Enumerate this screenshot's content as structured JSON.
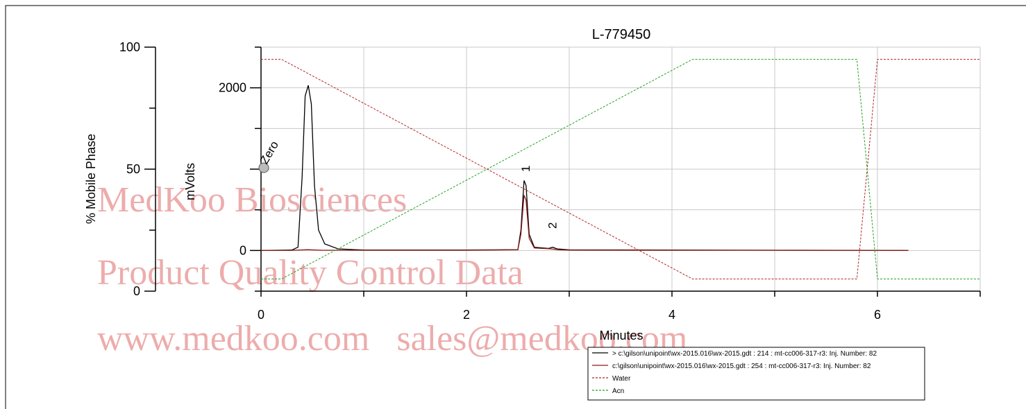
{
  "watermark": {
    "line1": "MedKoo Biosciences",
    "line2": "Product Quality Control Data",
    "line3": "www.medkoo.com   sales@medkoo.com"
  },
  "chart_data": {
    "type": "line",
    "title": "L-779450",
    "xlabel": "Minutes",
    "ylabel_left": "% Mobile Phase",
    "ylabel_right": "mVolts",
    "xlim": [
      0,
      7
    ],
    "ylim_phase": [
      0,
      100
    ],
    "ylim_mv": [
      -500,
      2500
    ],
    "x_ticks": [
      "0",
      "2",
      "4",
      "6"
    ],
    "phase_ticks": [
      "0",
      "50",
      "100"
    ],
    "mv_ticks": [
      "0",
      "2000"
    ],
    "grid": true,
    "legend_position": "bottom-right",
    "peak_labels": [
      {
        "label": "1",
        "x": 2.56
      },
      {
        "label": "2",
        "x": 2.82
      }
    ],
    "marker_label": "Zero",
    "series": [
      {
        "name": "> c:\\gilson\\unipoint\\wx-2015.016\\wx-2015.gdt : 214 : mt-cc006-317-r3: Inj. Number: 82",
        "color": "#000000",
        "style": "solid",
        "axis": "mv",
        "points": [
          [
            0,
            0
          ],
          [
            0.3,
            5
          ],
          [
            0.36,
            40
          ],
          [
            0.4,
            900
          ],
          [
            0.43,
            1900
          ],
          [
            0.46,
            2030
          ],
          [
            0.49,
            1800
          ],
          [
            0.52,
            800
          ],
          [
            0.56,
            250
          ],
          [
            0.62,
            80
          ],
          [
            0.75,
            20
          ],
          [
            1.0,
            5
          ],
          [
            2.0,
            5
          ],
          [
            2.5,
            10
          ],
          [
            2.53,
            250
          ],
          [
            2.56,
            860
          ],
          [
            2.58,
            800
          ],
          [
            2.61,
            200
          ],
          [
            2.66,
            40
          ],
          [
            2.8,
            25
          ],
          [
            2.84,
            40
          ],
          [
            2.88,
            20
          ],
          [
            3.0,
            8
          ],
          [
            4.0,
            6
          ],
          [
            5.0,
            3
          ],
          [
            6.0,
            2
          ],
          [
            6.3,
            0
          ]
        ]
      },
      {
        "name": "c:\\gilson\\unipoint\\wx-2015.016\\wx-2015.gdt : 254 : mt-cc006-317-r3: Inj. Number: 82",
        "color": "#8b1a1a",
        "style": "solid",
        "axis": "mv",
        "points": [
          [
            0,
            0
          ],
          [
            0.3,
            2
          ],
          [
            0.45,
            10
          ],
          [
            0.6,
            3
          ],
          [
            2.0,
            3
          ],
          [
            2.5,
            8
          ],
          [
            2.53,
            200
          ],
          [
            2.56,
            680
          ],
          [
            2.58,
            620
          ],
          [
            2.61,
            150
          ],
          [
            2.66,
            30
          ],
          [
            2.82,
            20
          ],
          [
            2.9,
            8
          ],
          [
            3.0,
            4
          ],
          [
            5.0,
            3
          ],
          [
            6.3,
            0
          ]
        ]
      },
      {
        "name": "Water",
        "color": "#b22222",
        "style": "dashed",
        "axis": "phase",
        "points": [
          [
            0,
            95
          ],
          [
            0.2,
            95
          ],
          [
            4.2,
            5
          ],
          [
            5.8,
            5
          ],
          [
            6.0,
            95
          ],
          [
            7.0,
            95
          ]
        ]
      },
      {
        "name": "Acn",
        "color": "#22a022",
        "style": "dashed",
        "axis": "phase",
        "points": [
          [
            0,
            5
          ],
          [
            0.2,
            5
          ],
          [
            4.2,
            95
          ],
          [
            5.8,
            95
          ],
          [
            6.0,
            5
          ],
          [
            7.0,
            5
          ]
        ]
      }
    ]
  }
}
